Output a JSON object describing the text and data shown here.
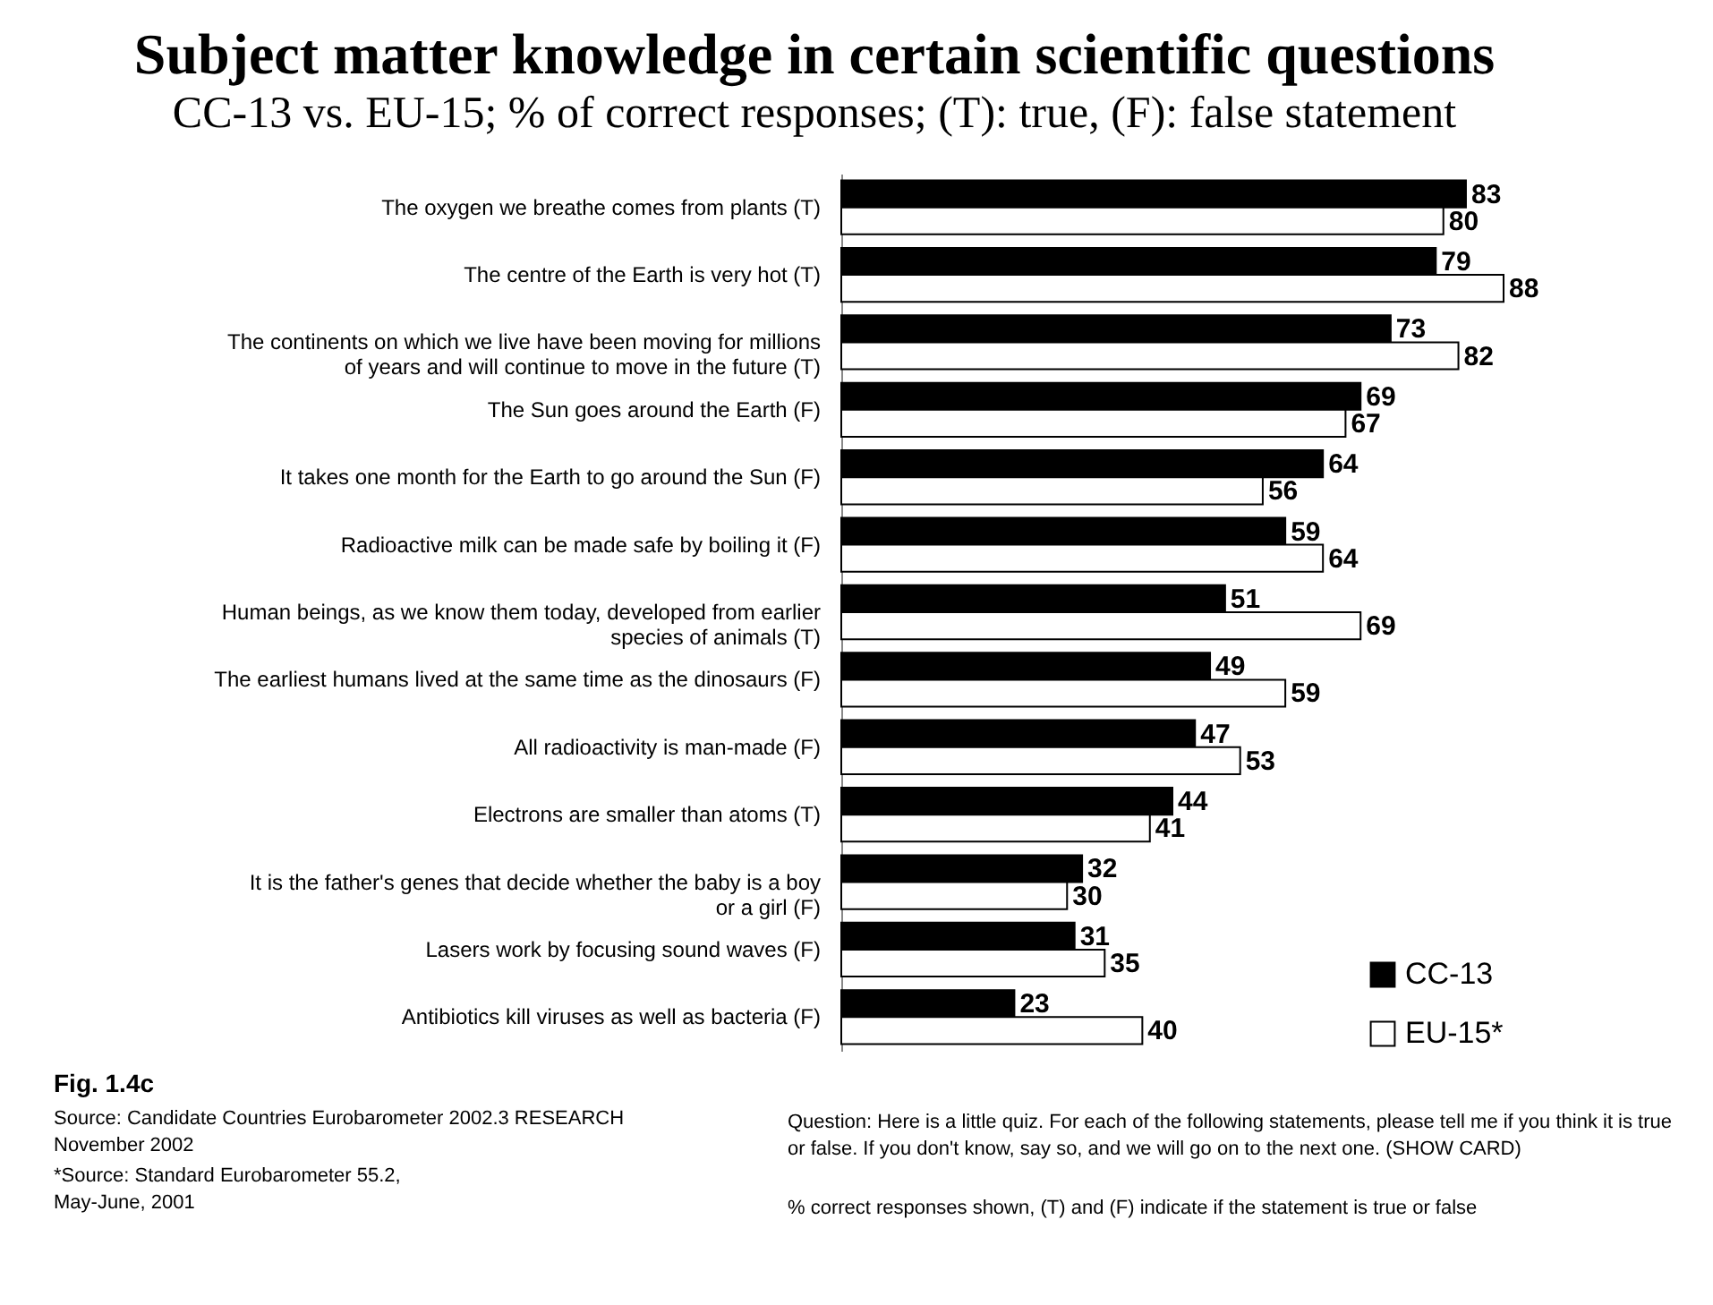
{
  "chart_data": {
    "type": "bar",
    "orientation": "horizontal",
    "title": "Subject matter knowledge in certain scientific questions",
    "subtitle": "CC-13 vs. EU-15; % of correct responses; (T): true, (F): false statement",
    "categories": [
      "The oxygen we breathe comes from plants (T)",
      "The centre of the Earth is very hot (T)",
      "The continents on which we live have been moving for millions of years and will continue to move in the future (T)",
      "The Sun goes around the Earth (F)",
      "It takes one month for the Earth to go around the Sun (F)",
      "Radioactive milk can be made safe by boiling it (F)",
      "Human beings, as we know them today, developed from earlier species of animals (T)",
      "The earliest humans lived at the same time as the dinosaurs (F)",
      "All radioactivity is man-made (F)",
      "Electrons are smaller than atoms (T)",
      "It is the father's genes that decide whether the baby is a boy or a girl (F)",
      "Lasers work by focusing sound waves (F)",
      "Antibiotics kill viruses as well as bacteria (F)"
    ],
    "series": [
      {
        "name": "CC-13",
        "color": "#000000",
        "values": [
          83,
          79,
          73,
          69,
          64,
          59,
          51,
          49,
          47,
          44,
          32,
          31,
          23
        ]
      },
      {
        "name": "EU-15*",
        "color": "#ffffff",
        "values": [
          80,
          88,
          82,
          67,
          56,
          64,
          69,
          59,
          53,
          41,
          30,
          35,
          40
        ]
      }
    ],
    "data_labels": true,
    "legend": "bottom right",
    "annotations": [
      "Fig. 1.4c",
      "Source: Candidate Countries Eurobarometer 2002.3 RESEARCH November  2002",
      "*Source: Standard Eurobarometer 55.2, May-June, 2001",
      "Question:  Here is a little quiz. For each of the following statements, please tell me if you think it is true or false. If you don't know, say so, and we will go on to the next one. (SHOW CARD)",
      "% correct responses shown, (T) and (F) indicate if the statement is true or false"
    ]
  }
}
